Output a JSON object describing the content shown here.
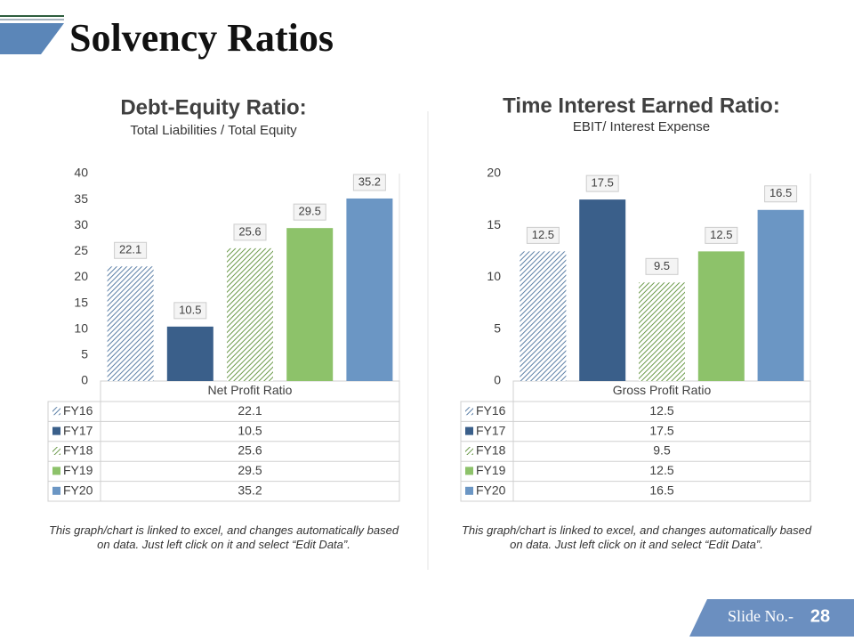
{
  "title": "Solvency Ratios",
  "slide_number_label": "Slide No.-",
  "slide_number": 28,
  "chart_data": [
    {
      "type": "bar",
      "title": "Debt-Equity Ratio:",
      "subtitle": "Total Liabilities / Total Equity",
      "categories": [
        "Net Profit Ratio"
      ],
      "series": [
        {
          "name": "FY16",
          "color": "#5b7fa6",
          "pattern": "hatch",
          "values": [
            22.1
          ]
        },
        {
          "name": "FY17",
          "color": "#3a5f8a",
          "values": [
            10.5
          ]
        },
        {
          "name": "FY18",
          "color": "#6b9a4a",
          "pattern": "hatch",
          "values": [
            25.6
          ]
        },
        {
          "name": "FY19",
          "color": "#8dc26a",
          "values": [
            29.5
          ]
        },
        {
          "name": "FY20",
          "color": "#6b96c4",
          "values": [
            35.2
          ]
        }
      ],
      "ylim": [
        0,
        40
      ],
      "yticks": [
        0,
        5,
        10,
        15,
        20,
        25,
        30,
        35,
        40
      ],
      "grid": false,
      "note": "This graph/chart is linked to excel, and changes automatically based on data. Just left click on it and select “Edit Data”."
    },
    {
      "type": "bar",
      "title": "Time Interest Earned Ratio:",
      "subtitle": "EBIT/ Interest Expense",
      "categories": [
        "Gross Profit Ratio"
      ],
      "series": [
        {
          "name": "FY16",
          "color": "#5b7fa6",
          "pattern": "hatch",
          "values": [
            12.5
          ]
        },
        {
          "name": "FY17",
          "color": "#3a5f8a",
          "values": [
            17.5
          ]
        },
        {
          "name": "FY18",
          "color": "#6b9a4a",
          "pattern": "hatch",
          "values": [
            9.5
          ]
        },
        {
          "name": "FY19",
          "color": "#8dc26a",
          "values": [
            12.5
          ]
        },
        {
          "name": "FY20",
          "color": "#6b96c4",
          "values": [
            16.5
          ]
        }
      ],
      "ylim": [
        0,
        20
      ],
      "yticks": [
        0,
        5,
        10,
        15,
        20
      ],
      "grid": false,
      "note": "This graph/chart is linked to excel, and changes automatically based on data. Just left click on it and select “Edit Data”."
    }
  ]
}
